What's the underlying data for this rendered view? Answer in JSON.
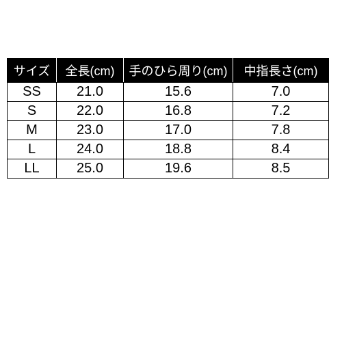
{
  "table": {
    "columns": [
      {
        "key": "size",
        "label": "サイズ",
        "class": "col-size"
      },
      {
        "key": "length",
        "label": "全長(cm)",
        "class": "col-length"
      },
      {
        "key": "palm",
        "label": "手のひら周り(cm)",
        "class": "col-palm"
      },
      {
        "key": "finger",
        "label": "中指長さ(cm)",
        "class": "col-finger"
      }
    ],
    "rows": [
      {
        "size": "SS",
        "length": "21.0",
        "palm": "15.6",
        "finger": "7.0"
      },
      {
        "size": "S",
        "length": "22.0",
        "palm": "16.8",
        "finger": "7.2"
      },
      {
        "size": "M",
        "length": "23.0",
        "palm": "17.0",
        "finger": "7.8"
      },
      {
        "size": "L",
        "length": "24.0",
        "palm": "18.8",
        "finger": "8.4"
      },
      {
        "size": "LL",
        "length": "25.0",
        "palm": "19.6",
        "finger": "8.5"
      }
    ],
    "header_bg": "#000000",
    "header_fg": "#ffffff",
    "cell_fg": "#000000",
    "border_color": "#000000",
    "header_fontsize": 18,
    "cell_fontsize": 20
  }
}
